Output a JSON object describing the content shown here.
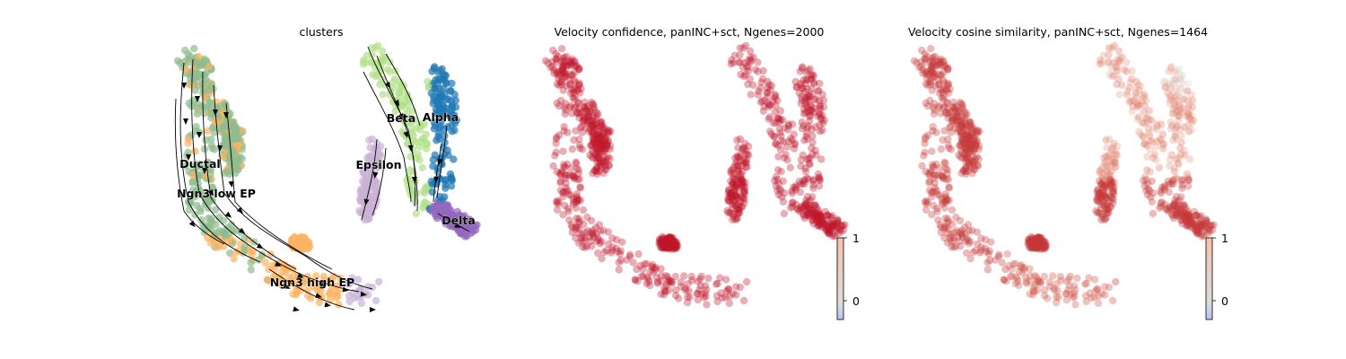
{
  "chart_data": [
    {
      "type": "scatter",
      "title": "clusters",
      "streamlines": true,
      "series": [
        {
          "name": "Ductal",
          "color": "#8fbc8f"
        },
        {
          "name": "Ngn3 low EP",
          "color": "#8fbc8f"
        },
        {
          "name": "Ngn3 high EP",
          "color": "#fdb462"
        },
        {
          "name": "Beta",
          "color": "#b2df8a"
        },
        {
          "name": "Alpha",
          "color": "#1f78b4"
        },
        {
          "name": "Epsilon",
          "color": "#cab2d6"
        },
        {
          "name": "Delta",
          "color": "#9467bd"
        }
      ],
      "cluster_labels": [
        "Ductal",
        "Ngn3 low EP",
        "Ngn3 high EP",
        "Beta",
        "Alpha",
        "Epsilon",
        "Delta"
      ]
    },
    {
      "type": "scatter",
      "title": "Velocity confidence, panINC+sct, Ngenes=2000",
      "colorbar": {
        "ticks": [
          "1",
          "0"
        ],
        "range": [
          -0.25,
          1.0
        ],
        "colormap": "coolwarm"
      },
      "point_color": "#c0172c"
    },
    {
      "type": "scatter",
      "title": "Velocity cosine similarity, panINC+sct, Ngenes=1464",
      "colorbar": {
        "ticks": [
          "1",
          "0"
        ],
        "range": [
          -0.25,
          1.0
        ],
        "colormap": "coolwarm"
      },
      "point_color": "#c73a38"
    }
  ]
}
